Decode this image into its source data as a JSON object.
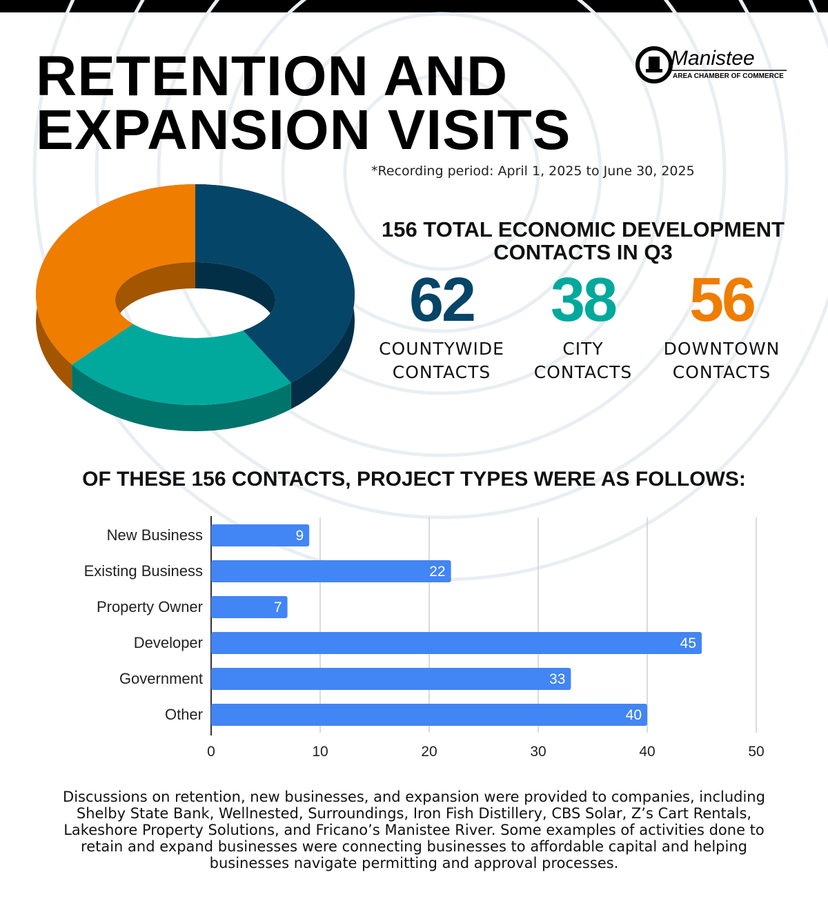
{
  "header": {
    "title_line1": "RETENTION AND",
    "title_line2": "EXPANSION VISITS",
    "logo_name": "Manistee",
    "logo_sub": "AREA CHAMBER OF COMMERCE",
    "period": "*Recording period: April 1, 2025 to June 30, 2025"
  },
  "chart_data": [
    {
      "type": "pie",
      "donut": true,
      "three_d": true,
      "title": "156 TOTAL ECONOMIC DEVELOPMENT CONTACTS IN Q3",
      "categories": [
        "COUNTYWIDE CONTACTS",
        "CITY CONTACTS",
        "DOWNTOWN CONTACTS"
      ],
      "values": [
        62,
        38,
        56
      ],
      "colors": [
        "#054567",
        "#00a99c",
        "#ef7d00"
      ]
    },
    {
      "type": "bar",
      "orientation": "horizontal",
      "title": "OF THESE 156 CONTACTS, PROJECT TYPES WERE AS FOLLOWS:",
      "categories": [
        "New Business",
        "Existing Business",
        "Property Owner",
        "Developer",
        "Government",
        "Other"
      ],
      "values": [
        9,
        22,
        7,
        45,
        33,
        40
      ],
      "color": "#4285f4",
      "xlim": [
        0,
        50
      ],
      "xticks": [
        0,
        10,
        20,
        30,
        40,
        50
      ],
      "grid": true,
      "data_labels": true
    }
  ],
  "footer": {
    "text": "Discussions on retention, new businesses, and expansion were provided to companies, including Shelby State Bank, Wellnested, Surroundings, Iron Fish Distillery, CBS Solar, Z’s Cart Rentals, Lakeshore Property Solutions, and Fricano’s Manistee River. Some examples of activities done to retain and expand businesses were connecting businesses to affordable capital and helping businesses navigate permitting and approval processes."
  }
}
